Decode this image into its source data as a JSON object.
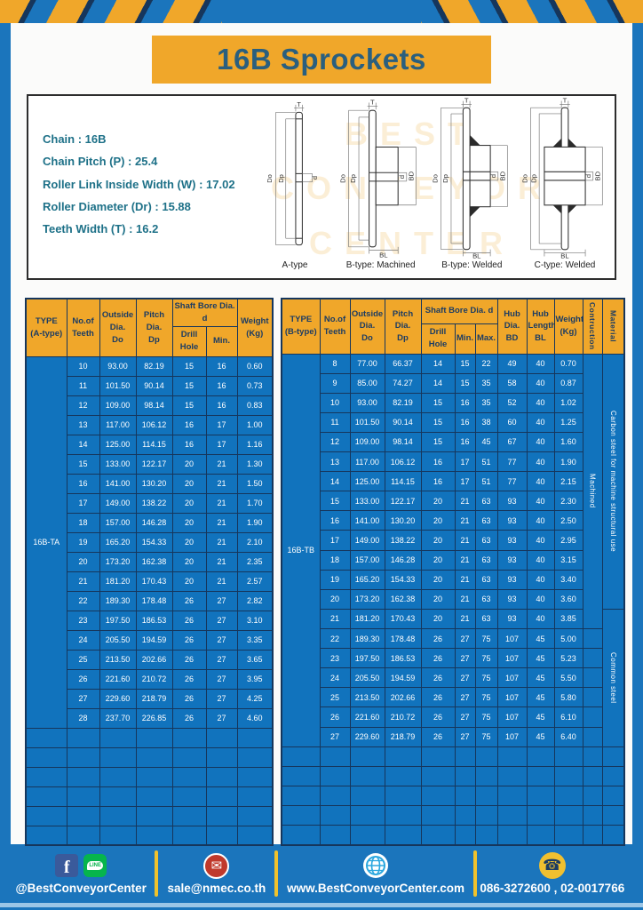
{
  "page_title": "16B Sprockets",
  "specs": {
    "lines": [
      "Chain : 16B",
      "Chain Pitch (P) : 25.4",
      "Roller Link Inside Width (W) : 17.02",
      "Roller Diameter (Dr) : 15.88",
      "Teeth Width (T) : 16.2"
    ]
  },
  "drawings": {
    "captions": [
      "A-type",
      "B-type: Machined",
      "B-type: Welded",
      "C-type: Welded"
    ],
    "dims": {
      "t": "T",
      "outside": "Do",
      "pitch": "Dp",
      "bore": "d",
      "hub_dia": "BD",
      "hub_len": "BL"
    }
  },
  "watermark": {
    "lines": [
      "BEST",
      "CONVEYOR",
      "CENTER"
    ]
  },
  "table_a": {
    "type_label": "16B-TA",
    "headers": {
      "type": "TYPE\n(A-type)",
      "teeth": "No.of\nTeeth",
      "outside": "Outside\nDia.\nDo",
      "pitch": "Pitch Dia.\nDp",
      "shaft_bore": "Shaft Bore Dia. d",
      "drill": "Drill Hole",
      "min": "Min.",
      "weight": "Weight\n(Kg)"
    },
    "rows": [
      [
        "10",
        "93.00",
        "82.19",
        "15",
        "16",
        "0.60"
      ],
      [
        "11",
        "101.50",
        "90.14",
        "15",
        "16",
        "0.73"
      ],
      [
        "12",
        "109.00",
        "98.14",
        "15",
        "16",
        "0.83"
      ],
      [
        "13",
        "117.00",
        "106.12",
        "16",
        "17",
        "1.00"
      ],
      [
        "14",
        "125.00",
        "114.15",
        "16",
        "17",
        "1.16"
      ],
      [
        "15",
        "133.00",
        "122.17",
        "20",
        "21",
        "1.30"
      ],
      [
        "16",
        "141.00",
        "130.20",
        "20",
        "21",
        "1.50"
      ],
      [
        "17",
        "149.00",
        "138.22",
        "20",
        "21",
        "1.70"
      ],
      [
        "18",
        "157.00",
        "146.28",
        "20",
        "21",
        "1.90"
      ],
      [
        "19",
        "165.20",
        "154.33",
        "20",
        "21",
        "2.10"
      ],
      [
        "20",
        "173.20",
        "162.38",
        "20",
        "21",
        "2.35"
      ],
      [
        "21",
        "181.20",
        "170.43",
        "20",
        "21",
        "2.57"
      ],
      [
        "22",
        "189.30",
        "178.48",
        "26",
        "27",
        "2.82"
      ],
      [
        "23",
        "197.50",
        "186.53",
        "26",
        "27",
        "3.10"
      ],
      [
        "24",
        "205.50",
        "194.59",
        "26",
        "27",
        "3.35"
      ],
      [
        "25",
        "213.50",
        "202.66",
        "26",
        "27",
        "3.65"
      ],
      [
        "26",
        "221.60",
        "210.72",
        "26",
        "27",
        "3.95"
      ],
      [
        "27",
        "229.60",
        "218.79",
        "26",
        "27",
        "4.25"
      ],
      [
        "28",
        "237.70",
        "226.85",
        "26",
        "27",
        "4.60"
      ]
    ],
    "empty_rows": 6
  },
  "table_b": {
    "type_label": "16B-TB",
    "headers": {
      "type": "TYPE\n(B-type)",
      "teeth": "No.of\nTeeth",
      "outside": "Outside\nDia.\nDo",
      "pitch": "Pitch Dia.\nDp",
      "shaft_bore": "Shaft Bore Dia. d",
      "drill": "Drill Hole",
      "min": "Min.",
      "max": "Max.",
      "hub_dia": "Hub Dia.\nBD",
      "hub_len": "Hub\nLength\nBL",
      "weight": "Weight\n(Kg)",
      "construction": "Contruction",
      "material": "Material"
    },
    "rows": [
      [
        "8",
        "77.00",
        "66.37",
        "14",
        "15",
        "22",
        "49",
        "40",
        "0.70"
      ],
      [
        "9",
        "85.00",
        "74.27",
        "14",
        "15",
        "35",
        "58",
        "40",
        "0.87"
      ],
      [
        "10",
        "93.00",
        "82.19",
        "15",
        "16",
        "35",
        "52",
        "40",
        "1.02"
      ],
      [
        "11",
        "101.50",
        "90.14",
        "15",
        "16",
        "38",
        "60",
        "40",
        "1.25"
      ],
      [
        "12",
        "109.00",
        "98.14",
        "15",
        "16",
        "45",
        "67",
        "40",
        "1.60"
      ],
      [
        "13",
        "117.00",
        "106.12",
        "16",
        "17",
        "51",
        "77",
        "40",
        "1.90"
      ],
      [
        "14",
        "125.00",
        "114.15",
        "16",
        "17",
        "51",
        "77",
        "40",
        "2.15"
      ],
      [
        "15",
        "133.00",
        "122.17",
        "20",
        "21",
        "63",
        "93",
        "40",
        "2.30"
      ],
      [
        "16",
        "141.00",
        "130.20",
        "20",
        "21",
        "63",
        "93",
        "40",
        "2.50"
      ],
      [
        "17",
        "149.00",
        "138.22",
        "20",
        "21",
        "63",
        "93",
        "40",
        "2.95"
      ],
      [
        "18",
        "157.00",
        "146.28",
        "20",
        "21",
        "63",
        "93",
        "40",
        "3.15"
      ],
      [
        "19",
        "165.20",
        "154.33",
        "20",
        "21",
        "63",
        "93",
        "40",
        "3.40"
      ],
      [
        "20",
        "173.20",
        "162.38",
        "20",
        "21",
        "63",
        "93",
        "40",
        "3.60"
      ],
      [
        "21",
        "181.20",
        "170.43",
        "20",
        "21",
        "63",
        "93",
        "40",
        "3.85"
      ],
      [
        "22",
        "189.30",
        "178.48",
        "26",
        "27",
        "75",
        "107",
        "45",
        "5.00"
      ],
      [
        "23",
        "197.50",
        "186.53",
        "26",
        "27",
        "75",
        "107",
        "45",
        "5.23"
      ],
      [
        "24",
        "205.50",
        "194.59",
        "26",
        "27",
        "75",
        "107",
        "45",
        "5.50"
      ],
      [
        "25",
        "213.50",
        "202.66",
        "26",
        "27",
        "75",
        "107",
        "45",
        "5.80"
      ],
      [
        "26",
        "221.60",
        "210.72",
        "26",
        "27",
        "75",
        "107",
        "45",
        "6.10"
      ],
      [
        "27",
        "229.60",
        "218.79",
        "26",
        "27",
        "75",
        "107",
        "45",
        "6.40"
      ]
    ],
    "construction_label": "Machined",
    "construction_span": 14,
    "material_top_label": "Carbon steel for machine structural use",
    "material_top_span": 13,
    "material_bottom_label": "Common steel",
    "empty_rows": 5
  },
  "footer": {
    "facebook_glyph": "f",
    "line_glyph": "LINE",
    "mail_glyph": "✉",
    "phone_glyph": "☎",
    "social_label": "@BestConveyorCenter",
    "email_label": "sale@nmec.co.th",
    "website_label": "www.BestConveyorCenter.com",
    "phone_label": "086-3272600 , 02-0017766"
  },
  "colors": {
    "brand_blue": "#1b75bc",
    "accent_yellow": "#f0a72a",
    "table_blue": "#1173bd",
    "grid_navy": "#16365c",
    "title_teal": "#2a5f7e",
    "spec_teal": "#1e7188"
  }
}
